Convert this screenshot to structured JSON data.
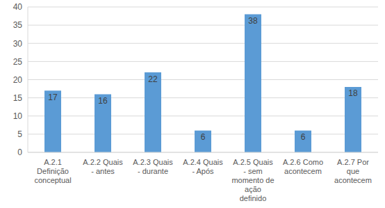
{
  "chart_data": {
    "type": "bar",
    "categories": [
      "A.2.1 Definição conceptual",
      "A.2.2 Quais - antes",
      "A.2.3 Quais - durante",
      "A.2.4 Quais - Após",
      "A.2.5 Quais - sem momento de ação definido",
      "A.2.6 Como acontecem",
      "A.2.7 Por que acontecem"
    ],
    "values": [
      17,
      16,
      22,
      6,
      38,
      6,
      18
    ],
    "color": "#5b9bd5",
    "ylim": [
      0,
      40
    ],
    "yticks": [
      0,
      5,
      10,
      15,
      20,
      25,
      30,
      35,
      40
    ],
    "grid": true,
    "data_labels": true
  }
}
